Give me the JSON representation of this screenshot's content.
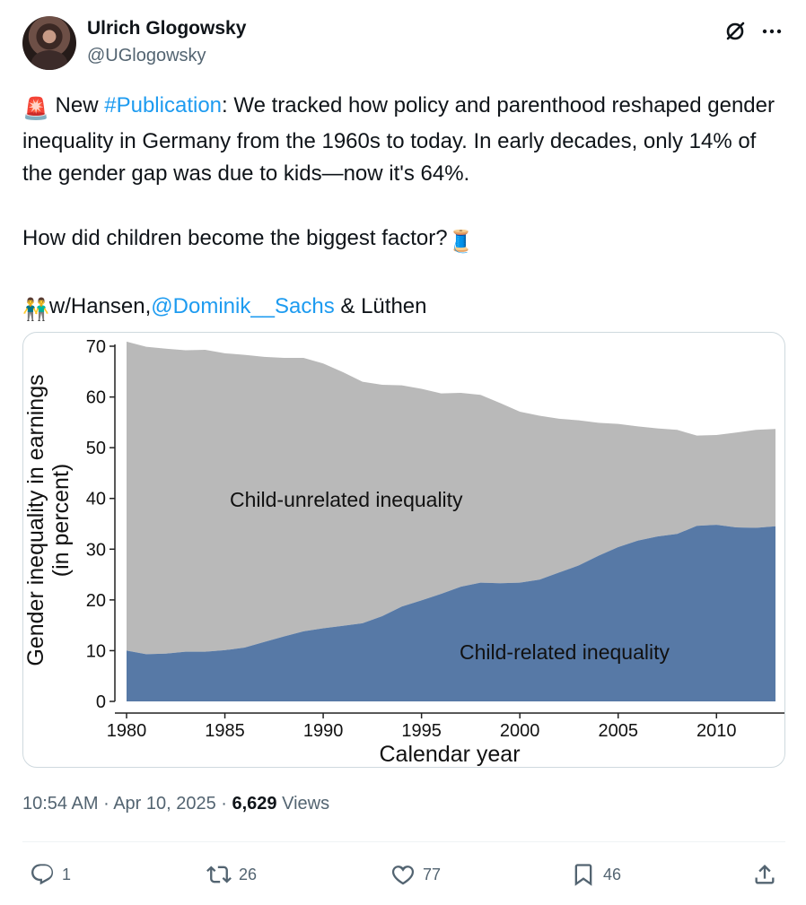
{
  "author": {
    "name": "Ulrich Glogowsky",
    "handle": "@UGlogowsky"
  },
  "tweet": {
    "alarm_emoji": "🚨",
    "line1_pre": " New ",
    "hashtag": "#Publication",
    "line1_post": ": We tracked how policy and parenthood reshaped gender inequality in Germany from the 1960s to today. In early decades, only 14% of the gender gap was due to kids—now it's 64%.",
    "line2": "How did children become the biggest factor?",
    "thread_emoji": "🧵",
    "people_emoji": "👬",
    "line3_pre": "w/Hansen,",
    "mention": "@Dominik__Sachs",
    "line3_post": " & Lüthen"
  },
  "meta": {
    "time": "10:54 AM",
    "date": "Apr 10, 2025",
    "views_count": "6,629",
    "views_label": "Views",
    "sep": " · "
  },
  "actions": {
    "replies": "1",
    "reposts": "26",
    "likes": "77",
    "bookmarks": "46"
  },
  "icons": [
    "grok-icon",
    "more-icon",
    "reply-icon",
    "repost-icon",
    "like-icon",
    "bookmark-icon",
    "share-icon"
  ],
  "colors": {
    "link": "#1d9bf0",
    "child_related": "#5779a6",
    "child_unrelated": "#b9b9b9"
  },
  "chart_data": {
    "type": "area",
    "xlabel": "Calendar year",
    "ylabel_line1": "Gender inequality in earnings",
    "ylabel_line2": "(in percent)",
    "xlim": [
      1980,
      2013
    ],
    "ylim": [
      0,
      70
    ],
    "xticks": [
      1980,
      1985,
      1990,
      1995,
      2000,
      2005,
      2010
    ],
    "yticks": [
      0,
      10,
      20,
      30,
      40,
      50,
      60,
      70
    ],
    "grid": false,
    "x": [
      1980,
      1981,
      1982,
      1983,
      1984,
      1985,
      1986,
      1987,
      1988,
      1989,
      1990,
      1991,
      1992,
      1993,
      1994,
      1995,
      1996,
      1997,
      1998,
      1999,
      2000,
      2001,
      2002,
      2003,
      2004,
      2005,
      2006,
      2007,
      2008,
      2009,
      2010,
      2011,
      2012,
      2013
    ],
    "series": [
      {
        "name": "Child-related inequality",
        "values": [
          10.0,
          9.3,
          9.4,
          9.8,
          9.8,
          10.1,
          10.6,
          11.7,
          12.8,
          13.8,
          14.4,
          14.9,
          15.4,
          16.8,
          18.7,
          19.9,
          21.2,
          22.6,
          23.4,
          23.3,
          23.4,
          24.0,
          25.4,
          26.8,
          28.7,
          30.4,
          31.7,
          32.5,
          33.0,
          34.6,
          34.8,
          34.3,
          34.2,
          34.5
        ]
      },
      {
        "name": "Child-unrelated inequality",
        "values": [
          60.9,
          60.6,
          60.1,
          59.4,
          59.5,
          58.5,
          57.7,
          56.2,
          54.9,
          53.9,
          52.2,
          50.0,
          47.6,
          45.6,
          43.6,
          41.7,
          39.5,
          38.2,
          37.0,
          35.5,
          33.7,
          32.3,
          30.3,
          28.6,
          26.2,
          24.3,
          22.5,
          21.3,
          20.5,
          17.8,
          17.7,
          18.7,
          19.3,
          19.2
        ]
      }
    ]
  }
}
